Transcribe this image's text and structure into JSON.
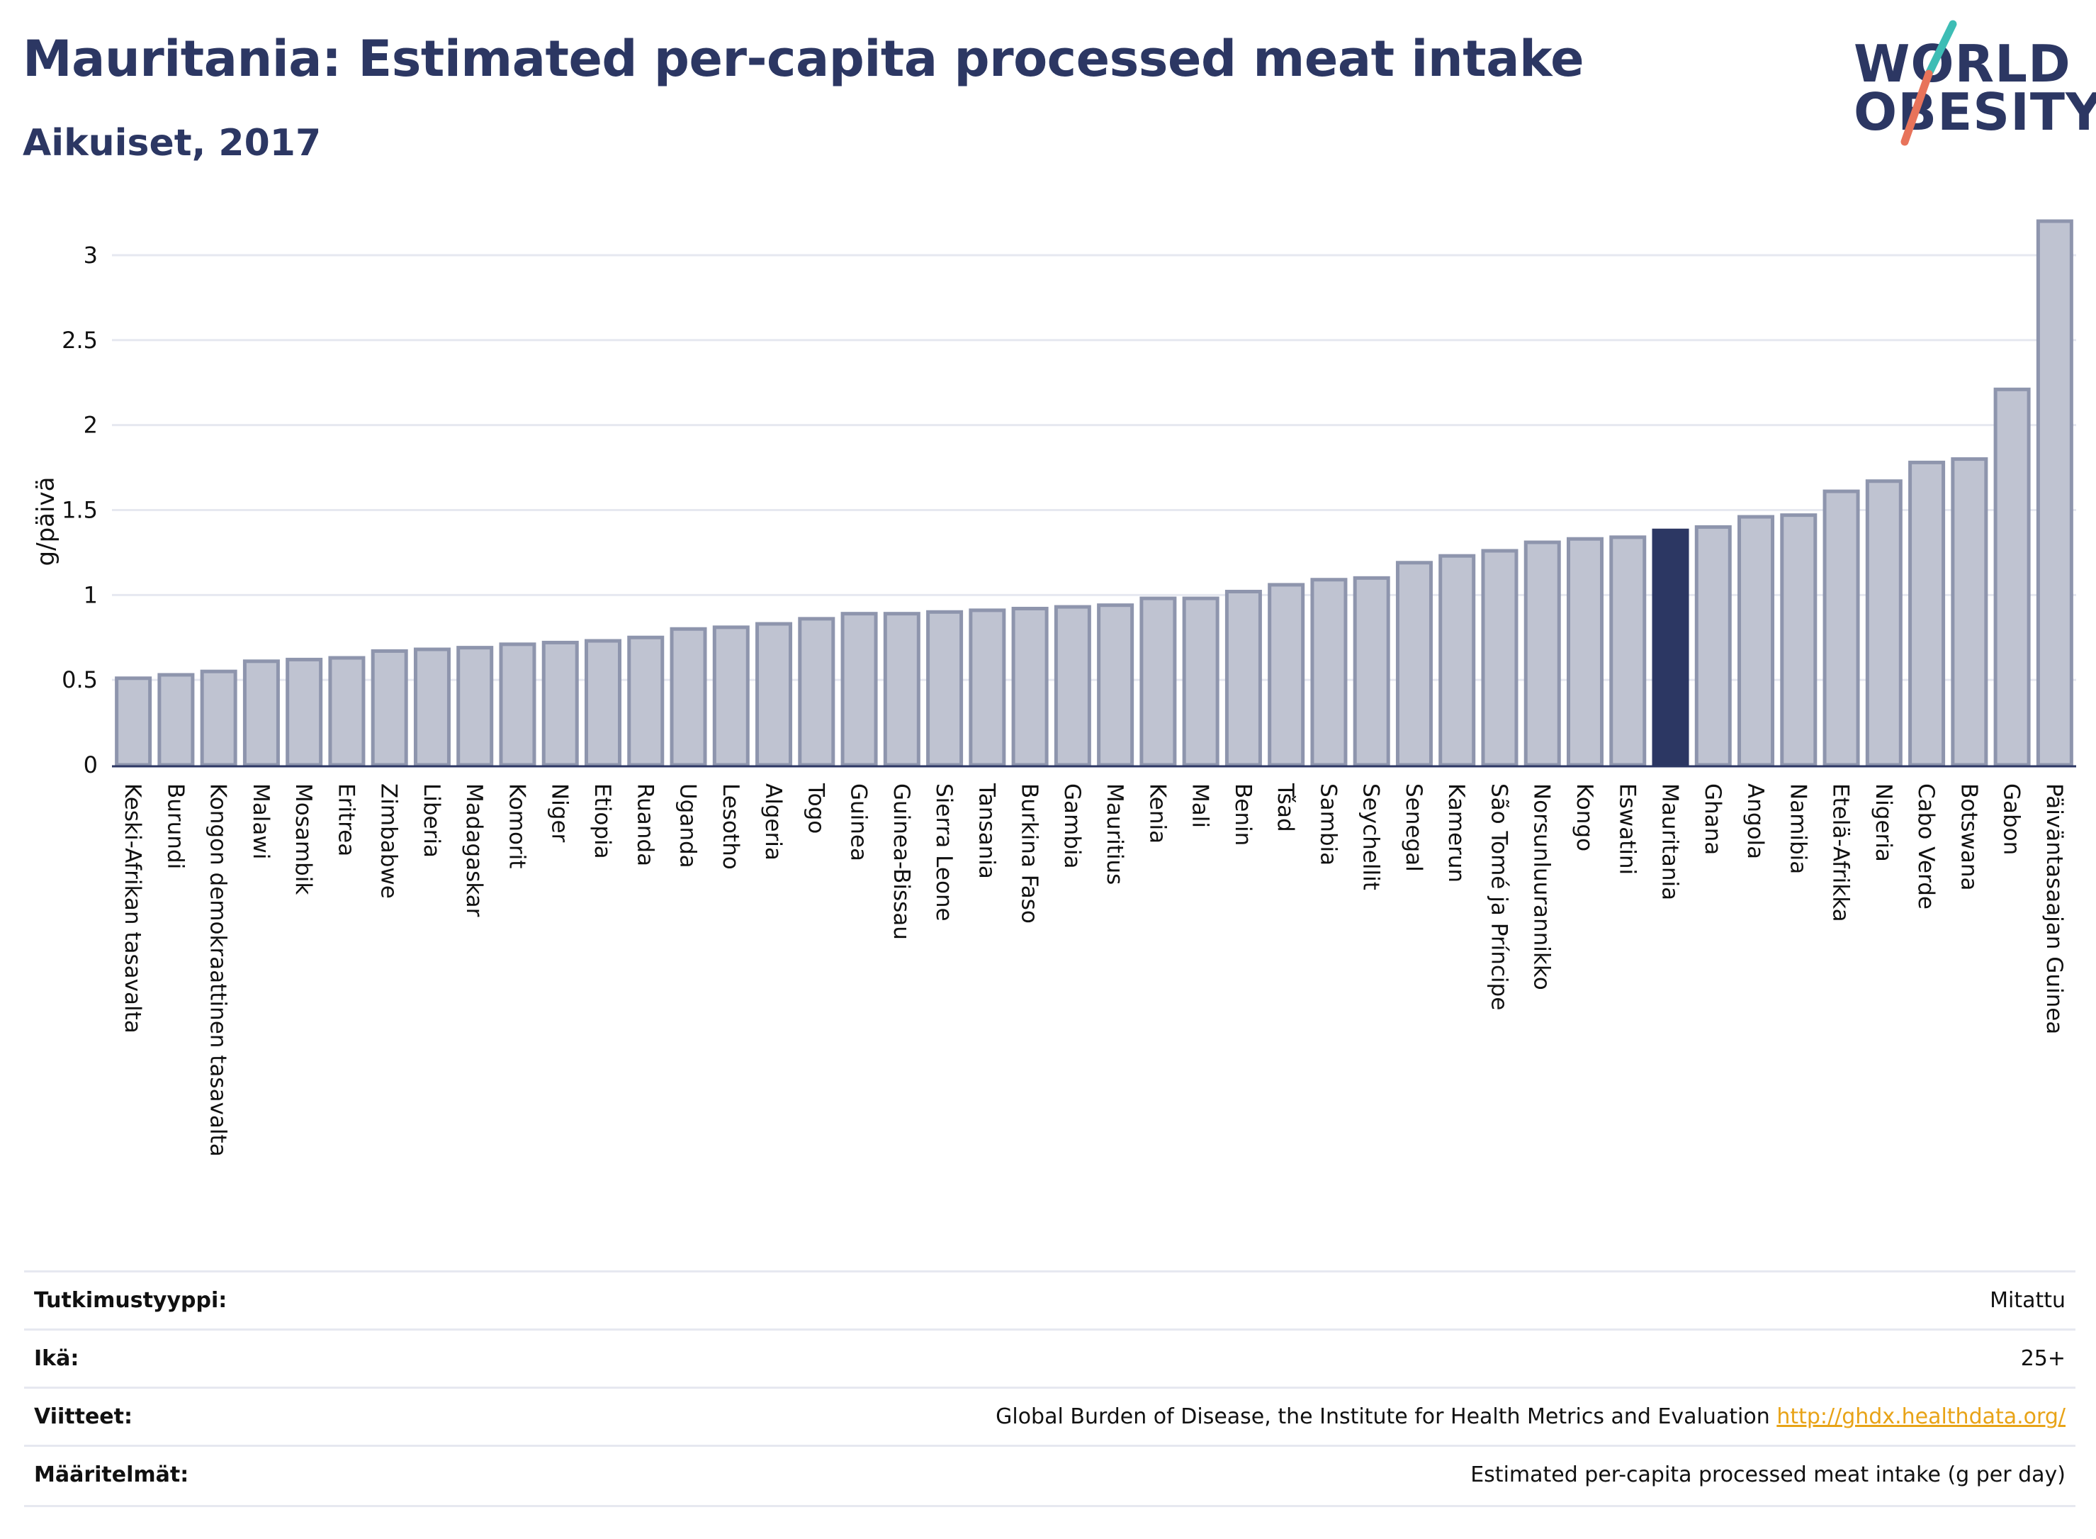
{
  "header": {
    "title": "Mauritania: Estimated per-capita processed meat intake",
    "subtitle": "Aikuiset, 2017"
  },
  "logo": {
    "line1": "WORLD",
    "line2": "OBESITY",
    "colors": {
      "teal": "#3dbdb5",
      "coral": "#e8735a",
      "navy": "#2c3763"
    }
  },
  "colors": {
    "bar": "#bfc3d1",
    "bar_border": "#8e95ad",
    "highlight": "#2c3763",
    "grid": "#e6e8f0",
    "axis": "#2c3763"
  },
  "chart_data": {
    "type": "bar",
    "title": "Mauritania: Estimated per-capita processed meat intake",
    "subtitle": "Aikuiset, 2017",
    "xlabel": "",
    "ylabel": "g/päivä",
    "ylim": [
      0,
      3.2
    ],
    "yticks": [
      0,
      0.5,
      1,
      1.5,
      2,
      2.5,
      3
    ],
    "ytick_labels": [
      "0",
      "0.5",
      "1",
      "1.5",
      "2",
      "2.5",
      "3"
    ],
    "grid": true,
    "highlight": "Mauritania",
    "categories": [
      "Keski-Afrikan tasavalta",
      "Burundi",
      "Kongon demokraattinen tasavalta",
      "Malawi",
      "Mosambik",
      "Eritrea",
      "Zimbabwe",
      "Liberia",
      "Madagaskar",
      "Komorit",
      "Niger",
      "Etiopia",
      "Ruanda",
      "Uganda",
      "Lesotho",
      "Algeria",
      "Togo",
      "Guinea",
      "Guinea-Bissau",
      "Sierra Leone",
      "Tansania",
      "Burkina Faso",
      "Gambia",
      "Mauritius",
      "Kenia",
      "Mali",
      "Benin",
      "Tšad",
      "Sambia",
      "Seychellit",
      "Senegal",
      "Kamerun",
      "São Tomé ja Príncipe",
      "Norsunluurannikko",
      "Kongo",
      "Eswatini",
      "Mauritania",
      "Ghana",
      "Angola",
      "Namibia",
      "Etelä-Afrikka",
      "Nigeria",
      "Cabo Verde",
      "Botswana",
      "Gabon",
      "Päiväntasaajan Guinea"
    ],
    "values": [
      0.51,
      0.53,
      0.55,
      0.61,
      0.62,
      0.63,
      0.67,
      0.68,
      0.69,
      0.71,
      0.72,
      0.73,
      0.75,
      0.8,
      0.81,
      0.83,
      0.86,
      0.89,
      0.89,
      0.9,
      0.91,
      0.92,
      0.93,
      0.94,
      0.98,
      0.98,
      1.02,
      1.06,
      1.09,
      1.1,
      1.19,
      1.23,
      1.26,
      1.31,
      1.33,
      1.34,
      1.38,
      1.4,
      1.46,
      1.47,
      1.61,
      1.67,
      1.78,
      1.8,
      2.21,
      3.2
    ]
  },
  "info": {
    "rows": [
      {
        "label": "Tutkimustyyppi:",
        "value": "Mitattu"
      },
      {
        "label": "Ikä:",
        "value": "25+"
      },
      {
        "label": "Viitteet:",
        "value": "Global Burden of Disease, the Institute for Health Metrics and Evaluation",
        "link": "http://ghdx.healthdata.org/"
      },
      {
        "label": "Määritelmät:",
        "value": "Estimated per-capita processed meat intake (g per day)"
      }
    ]
  }
}
